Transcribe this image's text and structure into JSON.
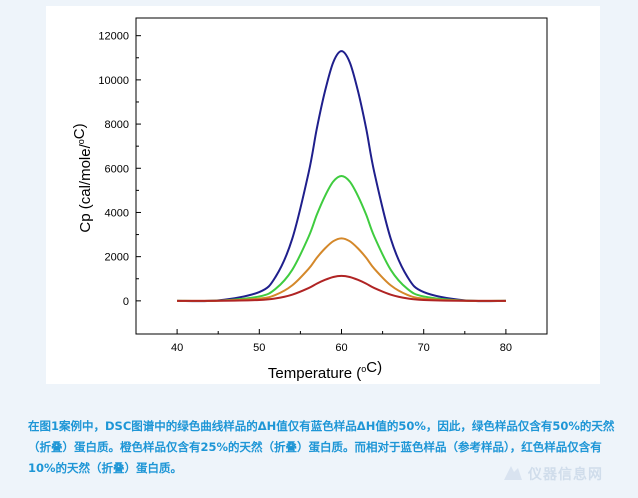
{
  "chart_data": {
    "type": "line",
    "xlabel": "Temperature (°C)",
    "ylabel": "Cp (cal/mole/°C)",
    "xlim": [
      35,
      85
    ],
    "ylim": [
      -1500,
      12800
    ],
    "xticks": [
      40,
      50,
      60,
      70,
      80
    ],
    "yticks": [
      0,
      2000,
      4000,
      6000,
      8000,
      10000,
      12000
    ],
    "grid": false,
    "legend": "none",
    "series": [
      {
        "color": "#1f1f8c",
        "x": [
          40,
          45,
          50,
          52,
          54,
          56,
          57,
          58,
          59,
          60,
          61,
          62,
          63,
          64,
          66,
          68,
          70,
          75,
          80
        ],
        "y": [
          0,
          20,
          400,
          1100,
          2800,
          5800,
          7800,
          9500,
          10800,
          11300,
          10800,
          9500,
          7800,
          5800,
          2800,
          1100,
          400,
          20,
          0
        ]
      },
      {
        "color": "#3fcc3f",
        "x": [
          40,
          45,
          50,
          52,
          54,
          56,
          57,
          58,
          59,
          60,
          61,
          62,
          63,
          64,
          66,
          68,
          70,
          75,
          80
        ],
        "y": [
          0,
          10,
          200,
          550,
          1400,
          2900,
          3900,
          4750,
          5400,
          5650,
          5400,
          4750,
          3900,
          2900,
          1400,
          550,
          200,
          10,
          0
        ]
      },
      {
        "color": "#d4882a",
        "x": [
          40,
          45,
          50,
          52,
          54,
          56,
          57,
          58,
          59,
          60,
          61,
          62,
          63,
          64,
          66,
          68,
          70,
          75,
          80
        ],
        "y": [
          0,
          5,
          100,
          275,
          700,
          1450,
          1950,
          2375,
          2700,
          2830,
          2700,
          2375,
          1950,
          1450,
          700,
          275,
          100,
          5,
          0
        ]
      },
      {
        "color": "#b02424",
        "x": [
          40,
          45,
          50,
          52,
          54,
          56,
          57,
          58,
          59,
          60,
          61,
          62,
          63,
          64,
          66,
          68,
          70,
          75,
          80
        ],
        "y": [
          0,
          2,
          40,
          110,
          280,
          580,
          780,
          950,
          1080,
          1130,
          1080,
          950,
          780,
          580,
          280,
          110,
          40,
          2,
          0
        ]
      }
    ]
  },
  "caption": "在图1案例中，DSC图谱中的绿色曲线样品的ΔH值仅有蓝色样品ΔH值的50%，因此，绿色样品仅含有50%的天然（折叠）蛋白质。橙色样品仅含有25%的天然（折叠）蛋白质。而相对于蓝色样品（参考样品），红色样品仅含有10%的天然（折叠）蛋白质。",
  "watermark": "仪器信息网"
}
